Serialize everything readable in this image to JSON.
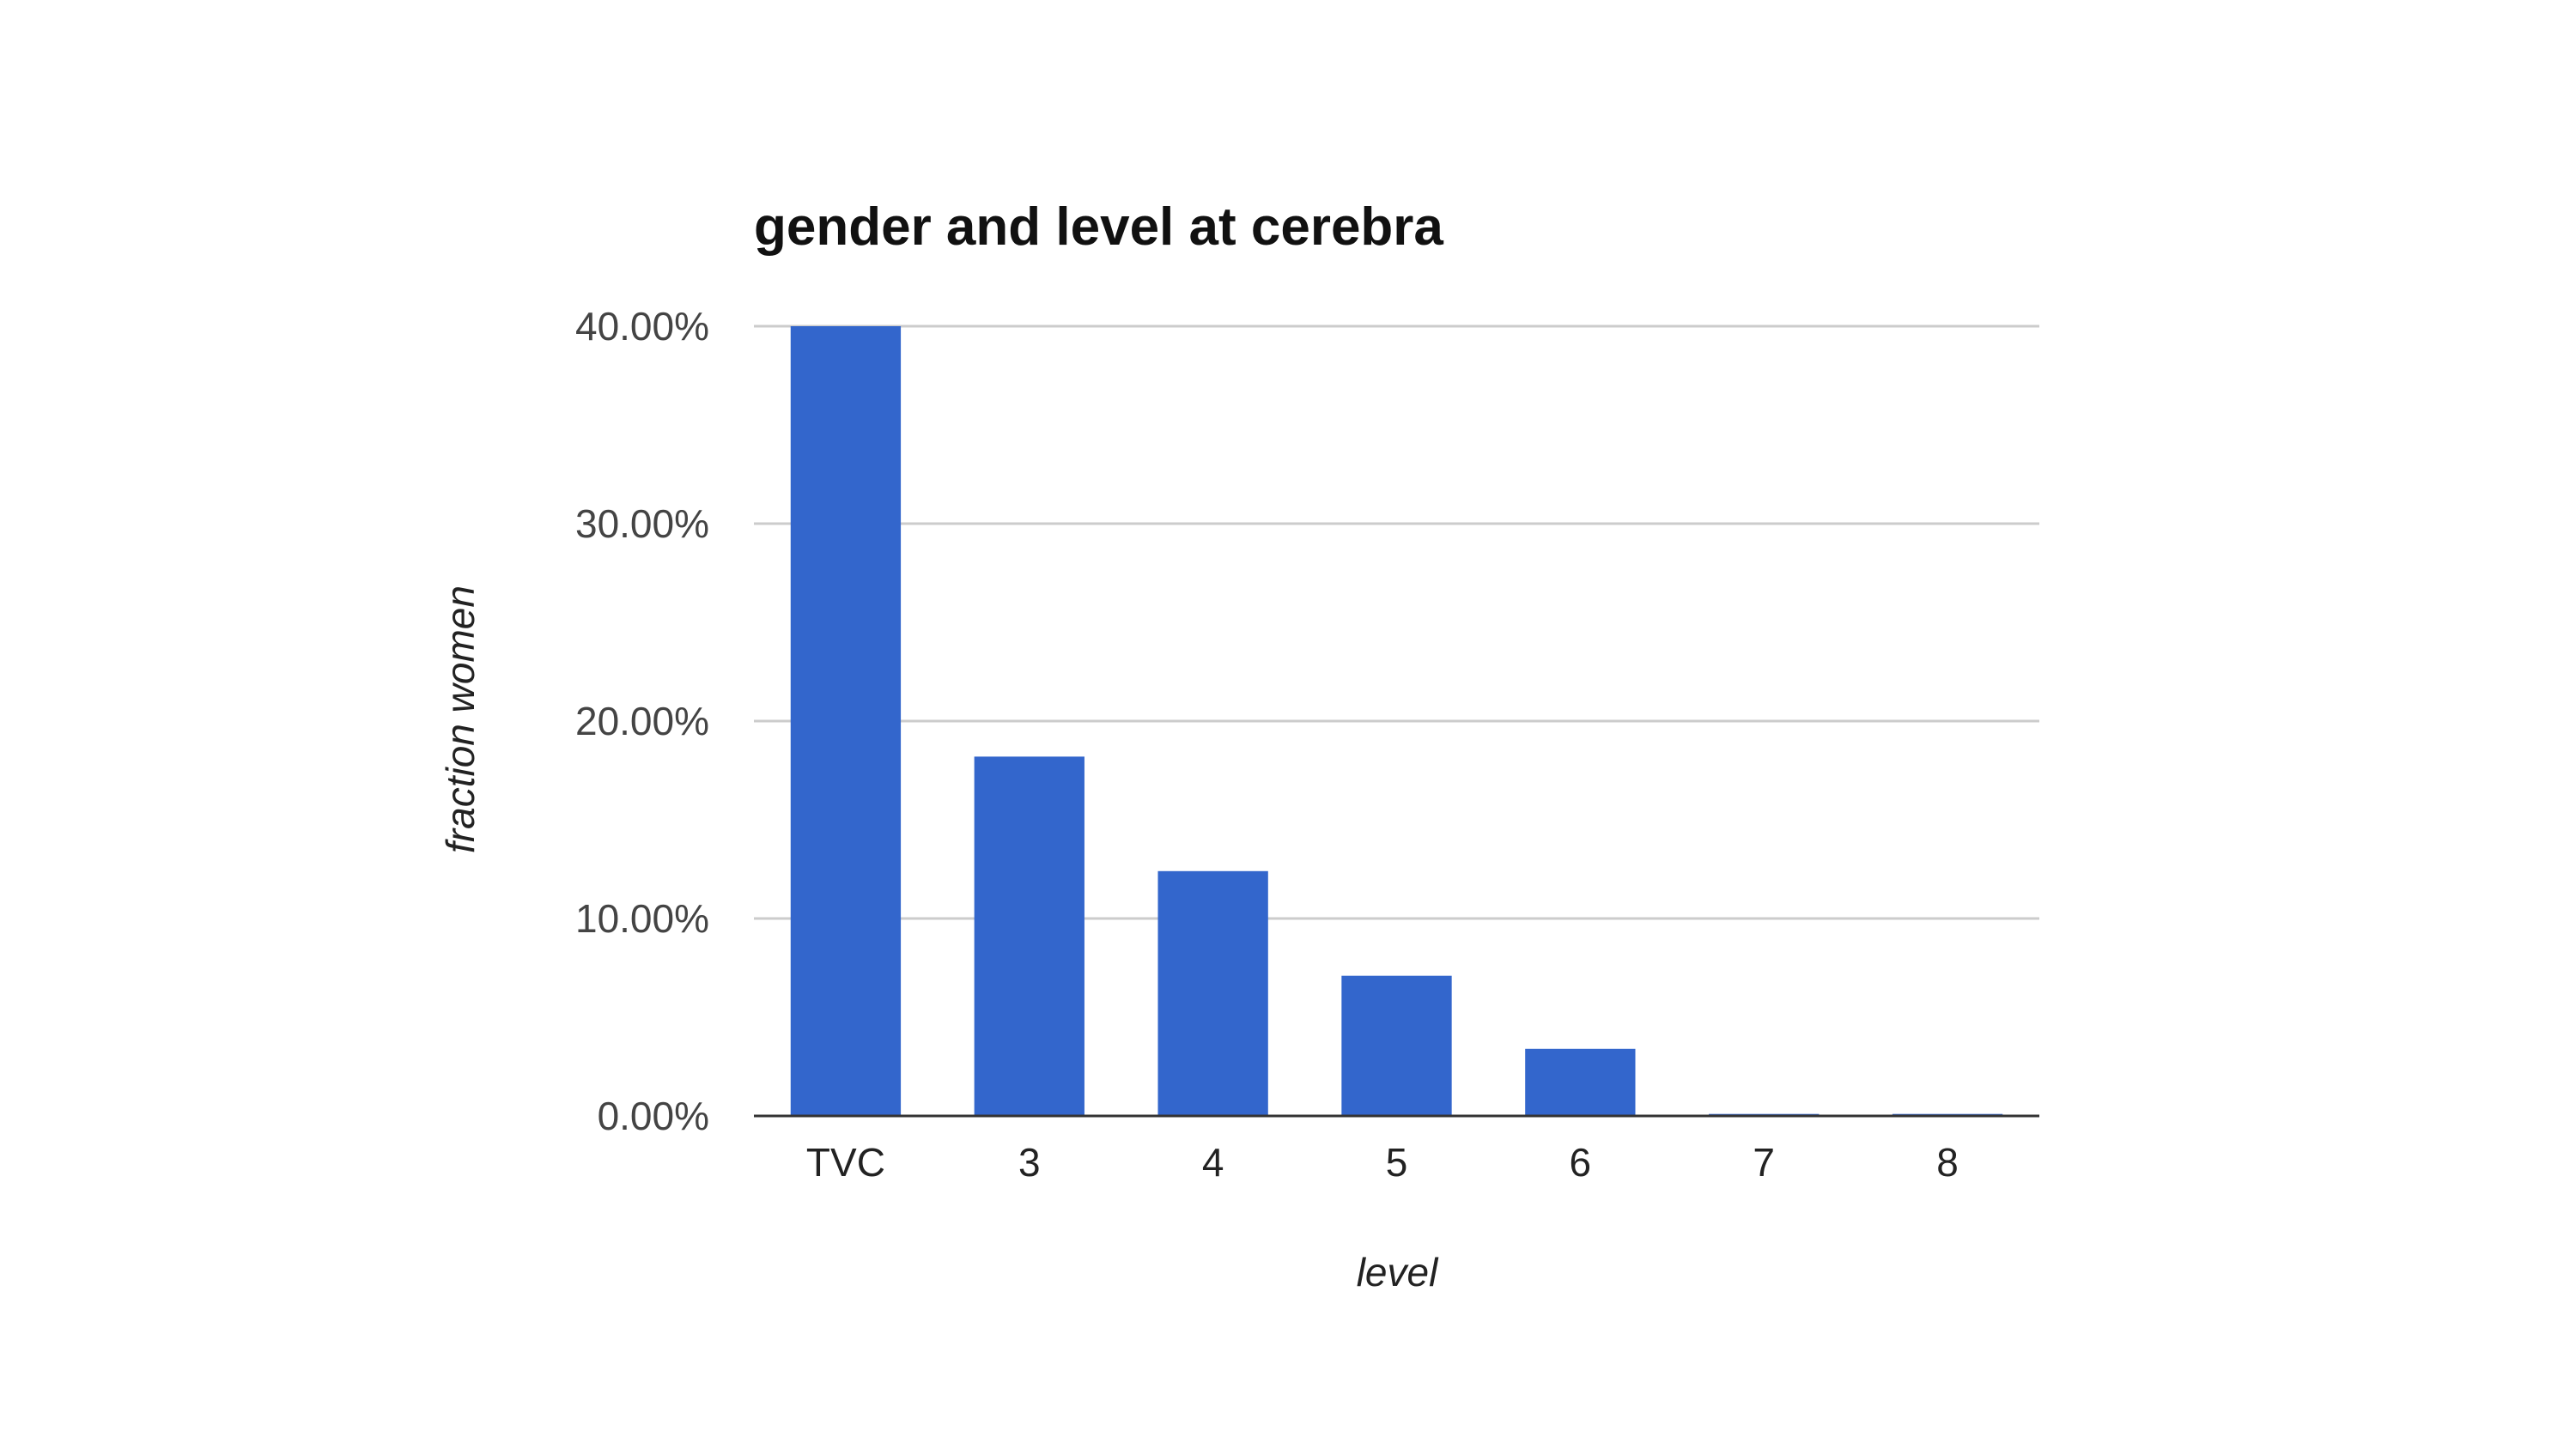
{
  "chart_data": {
    "type": "bar",
    "title": "gender and level at cerebra",
    "xlabel": "level",
    "ylabel": "fraction women",
    "categories": [
      "TVC",
      "3",
      "4",
      "5",
      "6",
      "7",
      "8"
    ],
    "values": [
      40.0,
      18.2,
      12.4,
      7.1,
      3.4,
      0.1,
      0.1
    ],
    "ylim": [
      0,
      40
    ],
    "yticks": [
      "0.00%",
      "10.00%",
      "20.00%",
      "30.00%",
      "40.00%"
    ],
    "yticks_values": [
      0,
      10,
      20,
      30,
      40
    ],
    "grid": true,
    "legend": "none",
    "colors": {
      "bar": "#3366cc",
      "grid": "#cccccc",
      "axis": "#333333"
    }
  }
}
